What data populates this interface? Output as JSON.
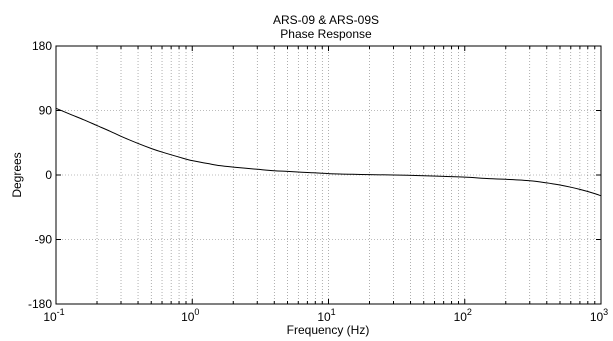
{
  "chart_data": {
    "type": "line",
    "title": "ARS-09 & ARS-09S",
    "subtitle": "Phase Response",
    "xlabel": "Frequency (Hz)",
    "ylabel": "Degrees",
    "xscale": "log",
    "xlim": [
      0.1,
      1000
    ],
    "ylim": [
      -180,
      180
    ],
    "grid": true,
    "x_ticks": [
      {
        "value": 0.1,
        "base": "10",
        "exp": "-1"
      },
      {
        "value": 1,
        "base": "10",
        "exp": "0"
      },
      {
        "value": 10,
        "base": "10",
        "exp": "1"
      },
      {
        "value": 100,
        "base": "10",
        "exp": "2"
      },
      {
        "value": 1000,
        "base": "10",
        "exp": "3"
      }
    ],
    "y_ticks": [
      {
        "value": 180,
        "label": "180"
      },
      {
        "value": 90,
        "label": "90"
      },
      {
        "value": 0,
        "label": "0"
      },
      {
        "value": -90,
        "label": "-90"
      },
      {
        "value": -180,
        "label": "-180"
      }
    ],
    "series": [
      {
        "x": [
          0.1,
          0.13,
          0.16,
          0.2,
          0.25,
          0.3,
          0.4,
          0.5,
          0.6,
          0.8,
          1,
          1.3,
          1.6,
          2,
          3,
          4,
          5,
          7,
          10,
          15,
          20,
          30,
          50,
          70,
          100,
          150,
          200,
          300,
          400,
          500,
          600,
          700,
          800,
          900,
          1000
        ],
        "y": [
          93,
          84,
          77,
          69,
          61,
          54,
          44,
          37,
          32,
          25,
          20,
          16,
          13,
          11,
          8,
          6,
          5,
          3.5,
          2,
          1,
          0.5,
          0,
          -1,
          -2,
          -3,
          -5,
          -6,
          -8,
          -11,
          -14,
          -17,
          -20,
          -23,
          -26,
          -29
        ],
        "color": "#000000"
      }
    ]
  }
}
